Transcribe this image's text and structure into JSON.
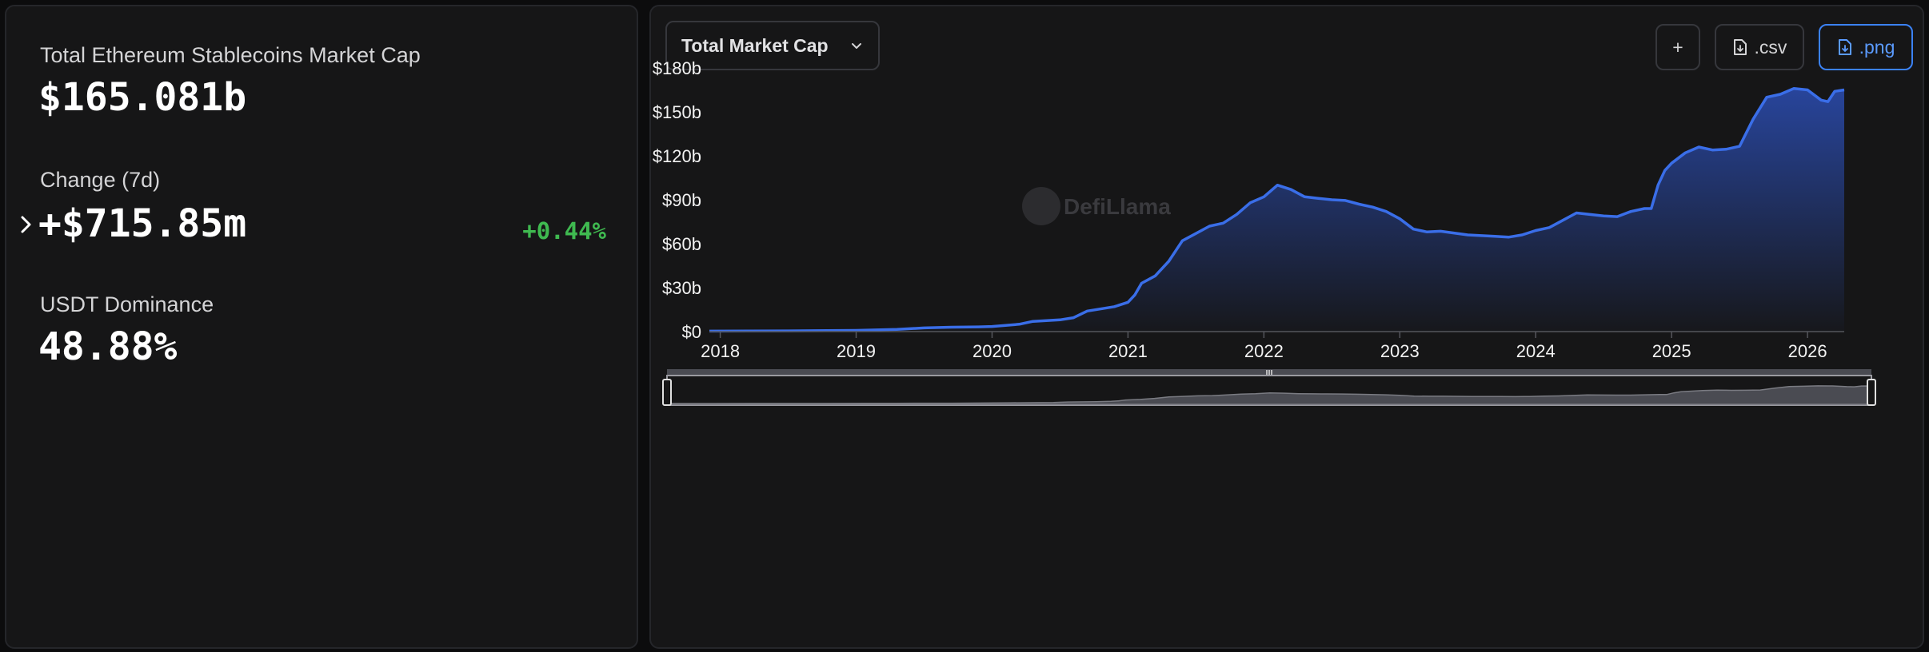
{
  "stats": {
    "market_cap_label": "Total Ethereum Stablecoins Market Cap",
    "market_cap_value": "$165.081b",
    "change_label": "Change (7d)",
    "change_value": "+$715.85m",
    "change_pct": "+0.44%",
    "dominance_label": "USDT Dominance",
    "dominance_value": "48.88%"
  },
  "toolbar": {
    "select_label": "Total Market Cap",
    "add_label": "+",
    "csv_label": ".csv",
    "png_label": ".png"
  },
  "watermark": "DefiLlama",
  "colors": {
    "line": "#3a6ee8",
    "positive": "#3fb950",
    "accent": "#3b82f6"
  },
  "chart_data": {
    "type": "area",
    "title": "",
    "xlabel": "",
    "ylabel": "",
    "y_unit": "USD billions",
    "ylim": [
      0,
      180
    ],
    "xlim": [
      2017.92,
      2026.27
    ],
    "yticks": [
      "$0",
      "$30b",
      "$60b",
      "$90b",
      "$120b",
      "$150b",
      "$180b"
    ],
    "ytick_values": [
      0,
      30,
      60,
      90,
      120,
      150,
      180
    ],
    "xticks": [
      "2018",
      "2019",
      "2020",
      "2021",
      "2022",
      "2023",
      "2024",
      "2025",
      "2026"
    ],
    "xtick_values": [
      2018,
      2019,
      2020,
      2021,
      2022,
      2023,
      2024,
      2025,
      2026
    ],
    "grid": false,
    "legend": "none",
    "series": [
      {
        "x": [
          2017.92,
          2018.5,
          2019.0,
          2019.3,
          2019.5,
          2019.7,
          2019.9,
          2020.0,
          2020.2,
          2020.3,
          2020.5,
          2020.6,
          2020.7,
          2020.9,
          2021.0,
          2021.05,
          2021.1,
          2021.2,
          2021.3,
          2021.4,
          2021.5,
          2021.6,
          2021.7,
          2021.8,
          2021.9,
          2022.0,
          2022.1,
          2022.2,
          2022.3,
          2022.4,
          2022.5,
          2022.6,
          2022.7,
          2022.8,
          2022.9,
          2023.0,
          2023.1,
          2023.2,
          2023.3,
          2023.5,
          2023.7,
          2023.8,
          2023.9,
          2024.0,
          2024.1,
          2024.2,
          2024.3,
          2024.5,
          2024.6,
          2024.7,
          2024.8,
          2024.85,
          2024.9,
          2024.95,
          2025.0,
          2025.1,
          2025.2,
          2025.3,
          2025.4,
          2025.5,
          2025.6,
          2025.7,
          2025.8,
          2025.9,
          2026.0,
          2026.1,
          2026.15,
          2026.2,
          2026.27
        ],
        "y": [
          0.3,
          0.5,
          0.8,
          1.5,
          2.5,
          3.0,
          3.2,
          3.5,
          5.0,
          7.0,
          8.0,
          9.5,
          14.0,
          17.0,
          20.0,
          25.0,
          33.0,
          38.0,
          48.0,
          62.0,
          67.0,
          72.0,
          74.0,
          80.0,
          88.0,
          92.0,
          100.0,
          97.0,
          92.0,
          91.0,
          90.0,
          89.5,
          87.0,
          85.0,
          82.0,
          77.0,
          70.0,
          68.0,
          68.5,
          66.0,
          65.0,
          64.5,
          66.0,
          69.0,
          71.0,
          76.0,
          81.0,
          79.0,
          78.5,
          82.0,
          84.0,
          84.0,
          100.0,
          110.0,
          115.0,
          122.0,
          126.0,
          124.0,
          124.5,
          126.5,
          145.0,
          160.0,
          162.0,
          166.0,
          165.0,
          158.0,
          157.0,
          164.0,
          165.0
        ]
      }
    ]
  }
}
